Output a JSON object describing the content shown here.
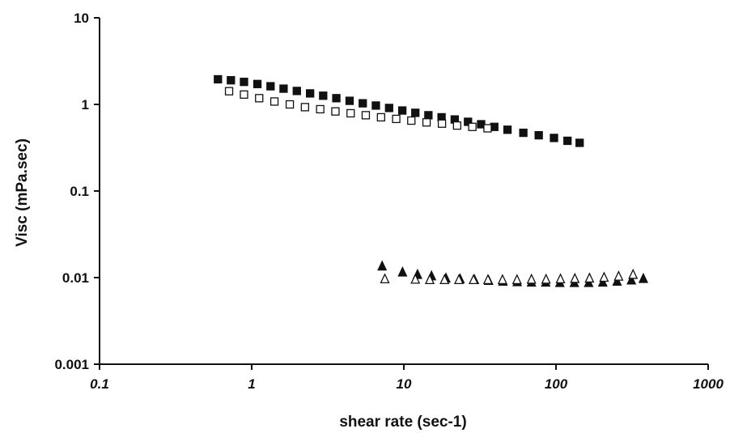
{
  "chart_data": {
    "type": "scatter",
    "title": "",
    "xlabel": "shear rate (sec-1)",
    "ylabel": "Visc (mPa.sec)",
    "x_scale": "log",
    "y_scale": "log",
    "xlim": [
      0.1,
      1000
    ],
    "ylim": [
      0.001,
      10
    ],
    "grid": false,
    "x_tick_labels": [
      "0.1",
      "1",
      "10",
      "100",
      "1000"
    ],
    "y_tick_labels": [
      "0.001",
      "0.01",
      "0.1",
      "1",
      "10"
    ],
    "series": [
      {
        "marker": "square",
        "filled": true,
        "color": "#111111",
        "x": [
          0.6,
          0.73,
          0.89,
          1.09,
          1.33,
          1.62,
          1.98,
          2.42,
          2.95,
          3.6,
          4.4,
          5.37,
          6.55,
          8.0,
          9.77,
          11.9,
          14.5,
          17.7,
          21.6,
          26.4,
          32.2,
          39.3,
          48.0,
          61.0,
          77.0,
          97.0,
          119.0,
          143.0
        ],
        "y": [
          1.95,
          1.9,
          1.82,
          1.72,
          1.62,
          1.52,
          1.43,
          1.34,
          1.26,
          1.18,
          1.1,
          1.03,
          0.97,
          0.91,
          0.85,
          0.8,
          0.75,
          0.71,
          0.67,
          0.63,
          0.59,
          0.55,
          0.51,
          0.47,
          0.44,
          0.41,
          0.38,
          0.36
        ]
      },
      {
        "marker": "square",
        "filled": false,
        "color": "#111111",
        "x": [
          0.71,
          0.89,
          1.12,
          1.41,
          1.78,
          2.24,
          2.82,
          3.55,
          4.47,
          5.62,
          7.08,
          8.91,
          11.2,
          14.1,
          17.8,
          22.4,
          28.2,
          35.5
        ],
        "y": [
          1.42,
          1.3,
          1.18,
          1.08,
          1.0,
          0.93,
          0.88,
          0.83,
          0.79,
          0.75,
          0.71,
          0.68,
          0.65,
          0.62,
          0.6,
          0.57,
          0.55,
          0.53
        ]
      },
      {
        "marker": "triangle",
        "filled": true,
        "color": "#111111",
        "x": [
          7.2,
          9.8,
          12.3,
          15.2,
          18.9,
          23.4,
          29.1,
          36.1,
          44.8,
          55.6,
          69.0,
          85.6,
          106.0,
          132.0,
          164.0,
          203.0,
          252.0,
          313.0,
          375.0
        ],
        "y": [
          0.0135,
          0.0115,
          0.0108,
          0.0104,
          0.0098,
          0.0096,
          0.0094,
          0.0092,
          0.009,
          0.0089,
          0.0088,
          0.0088,
          0.0087,
          0.0087,
          0.0087,
          0.0088,
          0.009,
          0.0093,
          0.0097
        ]
      },
      {
        "marker": "triangle",
        "filled": false,
        "color": "#111111",
        "x": [
          7.5,
          11.9,
          14.8,
          18.5,
          23.0,
          28.7,
          35.7,
          44.5,
          55.4,
          69.0,
          86.0,
          107.0,
          133.0,
          166.0,
          207.0,
          258.0,
          321.0
        ],
        "y": [
          0.0096,
          0.0095,
          0.0094,
          0.0094,
          0.0094,
          0.0094,
          0.0094,
          0.0094,
          0.0094,
          0.0095,
          0.0095,
          0.0096,
          0.0097,
          0.0098,
          0.01,
          0.0103,
          0.0108
        ]
      }
    ]
  }
}
